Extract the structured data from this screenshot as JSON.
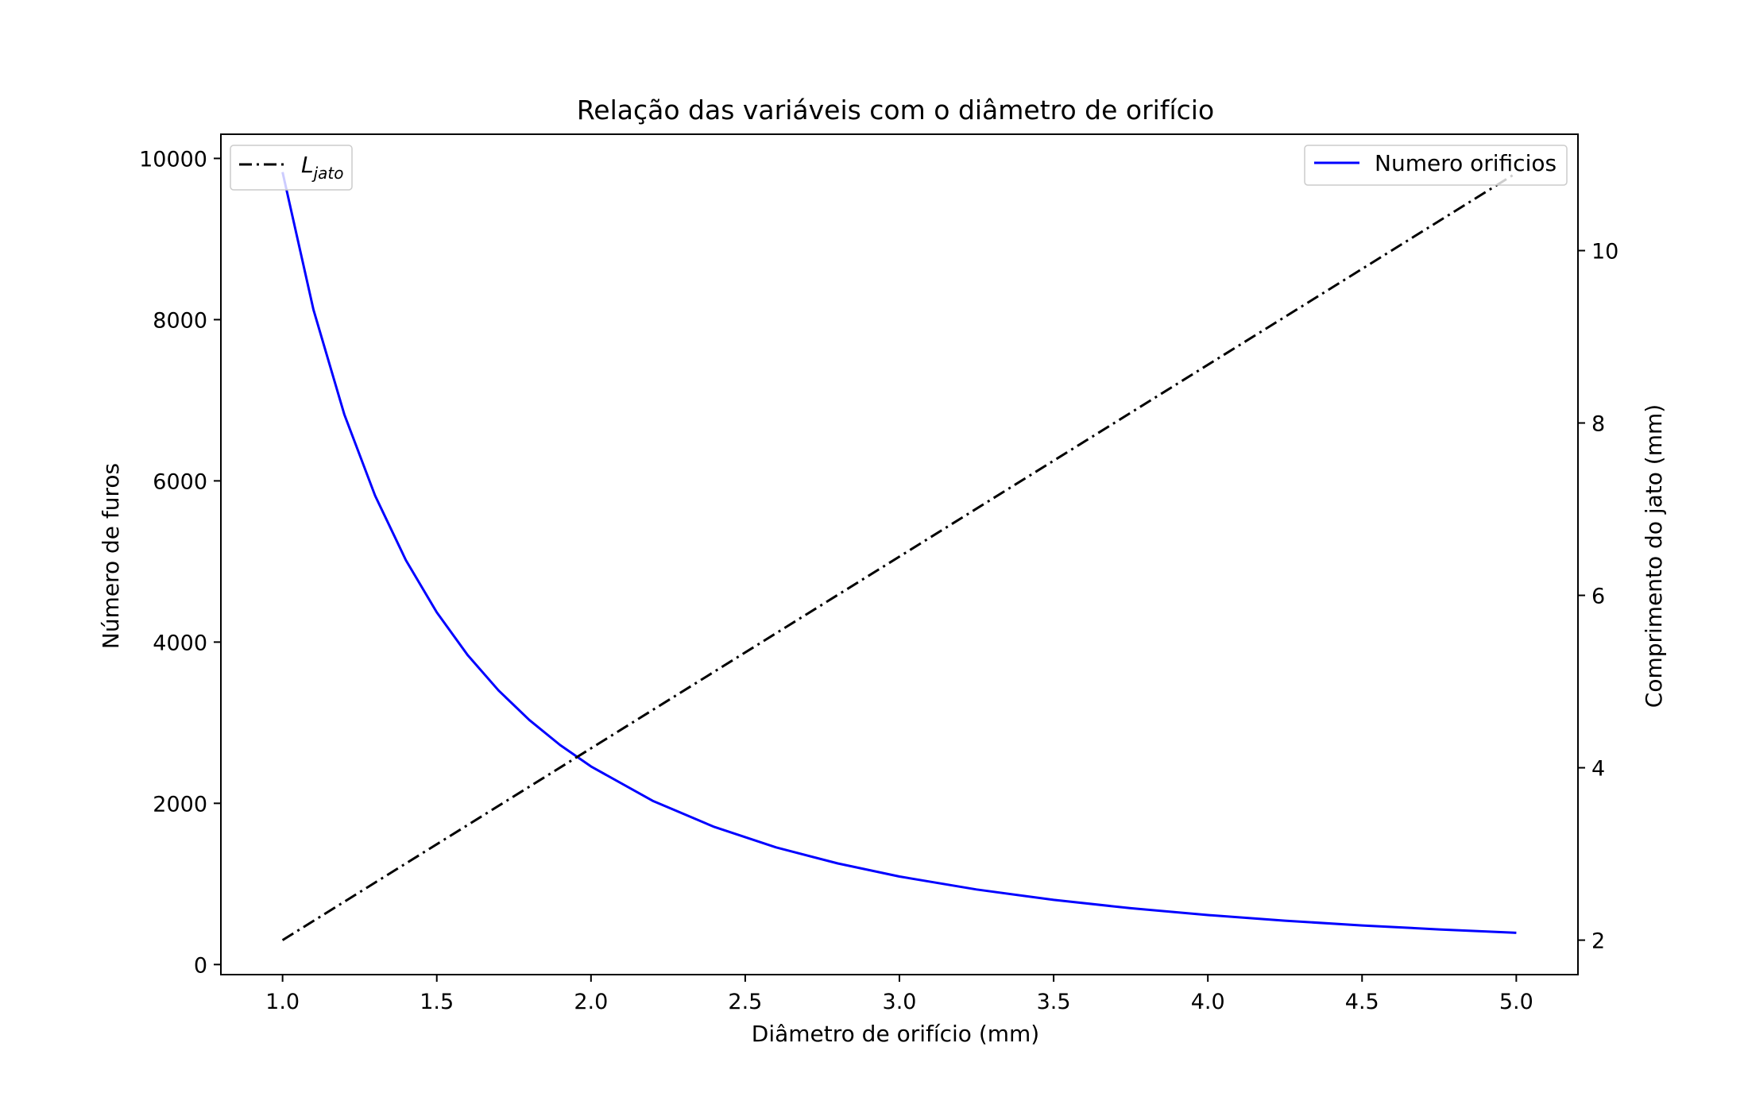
{
  "chart_data": {
    "type": "line",
    "title": "Relação das variáveis com o diâmetro de orifício",
    "xlabel": "Diâmetro de orifício (mm)",
    "ylabel_left": "Número de furos",
    "ylabel_right": "Comprimento do jato (mm)",
    "xlim": [
      0.8,
      5.2
    ],
    "ylim_left": [
      -125,
      10300
    ],
    "ylim_right": [
      1.6,
      11.35
    ],
    "x_ticks": [
      1.0,
      1.5,
      2.0,
      2.5,
      3.0,
      3.5,
      4.0,
      4.5,
      5.0
    ],
    "x_tick_labels": [
      "1.0",
      "1.5",
      "2.0",
      "2.5",
      "3.0",
      "3.5",
      "4.0",
      "4.5",
      "5.0"
    ],
    "y_left_ticks": [
      0,
      2000,
      4000,
      6000,
      8000,
      10000
    ],
    "y_left_tick_labels": [
      "0",
      "2000",
      "4000",
      "6000",
      "8000",
      "10000"
    ],
    "y_right_ticks": [
      2,
      4,
      6,
      8,
      10
    ],
    "y_right_tick_labels": [
      "2",
      "4",
      "6",
      "8",
      "10"
    ],
    "grid": false,
    "series": [
      {
        "name": "Numero orificios",
        "axis": "left",
        "color": "#0000ff",
        "linestyle": "solid",
        "x": [
          1.0,
          1.1,
          1.2,
          1.3,
          1.4,
          1.5,
          1.6,
          1.7,
          1.8,
          1.9,
          2.0,
          2.2,
          2.4,
          2.6,
          2.8,
          3.0,
          3.25,
          3.5,
          3.75,
          4.0,
          4.25,
          4.5,
          4.75,
          5.0
        ],
        "values": [
          9830,
          8124,
          6826,
          5817,
          5015,
          4369,
          3840,
          3401,
          3034,
          2723,
          2458,
          2031,
          1707,
          1454,
          1254,
          1092,
          931,
          802,
          699,
          614,
          544,
          485,
          436,
          393
        ]
      },
      {
        "name": "L_jato",
        "label_main": "L",
        "label_sub": "jato",
        "axis": "right",
        "color": "#000000",
        "linestyle": "dashdot",
        "x": [
          1.0,
          5.0
        ],
        "values": [
          2.0,
          10.9
        ]
      }
    ],
    "legends": [
      {
        "placement": "upper-left",
        "entries": [
          "L_jato"
        ]
      },
      {
        "placement": "upper-right",
        "entries": [
          "Numero orificios"
        ]
      }
    ]
  }
}
